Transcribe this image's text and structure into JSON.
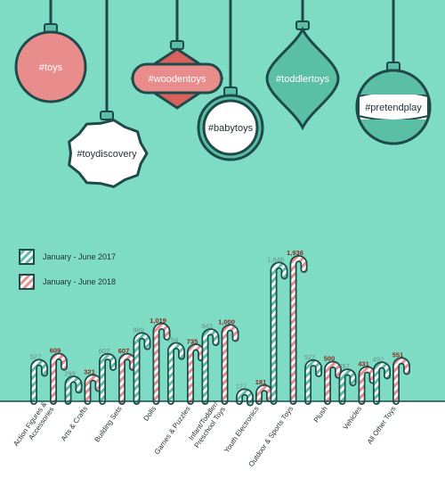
{
  "colors": {
    "background": "#7fdcc4",
    "outline": "#1f4a4a",
    "teal": "#5bbfa6",
    "pink": "#e88c8c",
    "stripe_light": "#ffffff"
  },
  "ornaments": [
    {
      "text": "#toys",
      "shape": "circle",
      "fill": "#e88c8c",
      "text_color": "#ffffff"
    },
    {
      "text": "#toydiscovery",
      "shape": "scallop",
      "fill": "#ffffff",
      "text_color": "#1f2f33"
    },
    {
      "text": "#woodentoys",
      "shape": "diamond",
      "fill": "#e88c8c",
      "text_color": "#ffffff"
    },
    {
      "text": "#babytoys",
      "shape": "ring",
      "fill": "#ffffff",
      "text_color": "#1f2f33"
    },
    {
      "text": "#toddlertoys",
      "shape": "onion",
      "fill": "#5bbfa6",
      "text_color": "#ffffff"
    },
    {
      "text": "#pretendplay",
      "shape": "globe",
      "fill": "#ffffff",
      "text_color": "#1f2f33"
    }
  ],
  "chart_data": {
    "type": "bar",
    "title": "",
    "xlabel": "",
    "ylabel": "",
    "categories": [
      "Action Figures & Accessories",
      "Arts & Crafts",
      "Building Sets",
      "Dolls",
      "Games & Puzzles",
      "Infant/Toddler/ Preschool Toys",
      "Youth Electronics",
      "Outdoor & Sports Toys",
      "Plush",
      "Vehicles",
      "All Other Toys"
    ],
    "series": [
      {
        "name": "January - June 2017",
        "color": "#5bbfa6",
        "values": [
          527,
          299,
          607,
          889,
          754,
          943,
          127,
          1846,
          522,
          397,
          492
        ],
        "labels": [
          "527",
          "299",
          "607",
          "889",
          "754",
          "943",
          "127",
          "1,846",
          "522",
          "397",
          "492"
        ]
      },
      {
        "name": "January - June 2018",
        "color": "#e88c8c",
        "values": [
          609,
          321,
          607,
          1019,
          735,
          1000,
          181,
          1936,
          500,
          431,
          551
        ],
        "labels": [
          "609",
          "321",
          "607",
          "1,019",
          "735",
          "1,000",
          "181",
          "1,936",
          "500",
          "431",
          "551"
        ]
      }
    ],
    "legend_position": "left",
    "grid": false
  }
}
